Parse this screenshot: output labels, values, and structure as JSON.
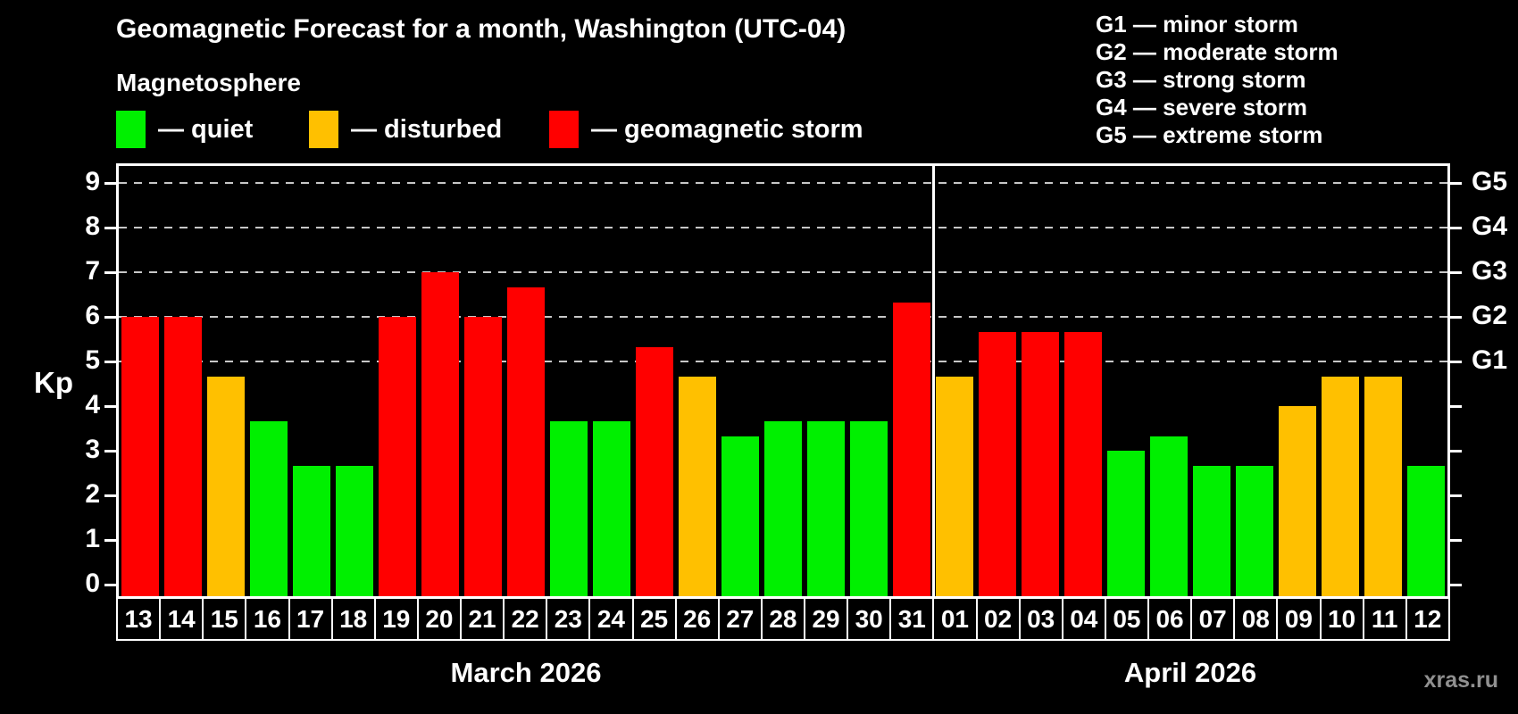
{
  "title": "Geomagnetic Forecast for a month, Washington (UTC-04)",
  "legend": {
    "heading": "Magnetosphere",
    "items": [
      {
        "level": "quiet",
        "label": "— quiet"
      },
      {
        "level": "disturbed",
        "label": "— disturbed"
      },
      {
        "level": "storm",
        "label": "— geomagnetic storm"
      }
    ]
  },
  "storm_legend": [
    "G1 — minor storm",
    "G2 — moderate storm",
    "G3 — strong storm",
    "G4 — severe storm",
    "G5 — extreme storm"
  ],
  "colors": {
    "quiet": "#00f000",
    "disturbed": "#ffc000",
    "storm": "#ff0000",
    "grid": "#c7c7c7",
    "watermark": "#909090"
  },
  "watermark": "xras.ru",
  "chart_data": {
    "type": "bar",
    "ylabel": "Kp",
    "ylim": [
      0,
      9.4
    ],
    "grid": "dashed horizontal lines at Kp 5..9 only",
    "legend_position": "top",
    "yticks": [
      0,
      1,
      2,
      3,
      4,
      5,
      6,
      7,
      8,
      9
    ],
    "gridlines": [
      5,
      6,
      7,
      8,
      9
    ],
    "right_axis": [
      {
        "kp": 5,
        "label": "G1"
      },
      {
        "kp": 6,
        "label": "G2"
      },
      {
        "kp": 7,
        "label": "G3"
      },
      {
        "kp": 8,
        "label": "G4"
      },
      {
        "kp": 9,
        "label": "G5"
      }
    ],
    "months": [
      {
        "label": "March 2026",
        "days": 19
      },
      {
        "label": "April 2026",
        "days": 12
      }
    ],
    "bars": [
      {
        "day": "13",
        "kp": 6.0,
        "level": "storm"
      },
      {
        "day": "14",
        "kp": 6.0,
        "level": "storm"
      },
      {
        "day": "15",
        "kp": 4.67,
        "level": "disturbed"
      },
      {
        "day": "16",
        "kp": 3.67,
        "level": "quiet"
      },
      {
        "day": "17",
        "kp": 2.67,
        "level": "quiet"
      },
      {
        "day": "18",
        "kp": 2.67,
        "level": "quiet"
      },
      {
        "day": "19",
        "kp": 6.0,
        "level": "storm"
      },
      {
        "day": "20",
        "kp": 7.0,
        "level": "storm"
      },
      {
        "day": "21",
        "kp": 6.0,
        "level": "storm"
      },
      {
        "day": "22",
        "kp": 6.67,
        "level": "storm"
      },
      {
        "day": "23",
        "kp": 3.67,
        "level": "quiet"
      },
      {
        "day": "24",
        "kp": 3.67,
        "level": "quiet"
      },
      {
        "day": "25",
        "kp": 5.33,
        "level": "storm"
      },
      {
        "day": "26",
        "kp": 4.67,
        "level": "disturbed"
      },
      {
        "day": "27",
        "kp": 3.33,
        "level": "quiet"
      },
      {
        "day": "28",
        "kp": 3.67,
        "level": "quiet"
      },
      {
        "day": "29",
        "kp": 3.67,
        "level": "quiet"
      },
      {
        "day": "30",
        "kp": 3.67,
        "level": "quiet"
      },
      {
        "day": "31",
        "kp": 6.33,
        "level": "storm"
      },
      {
        "day": "01",
        "kp": 4.67,
        "level": "disturbed"
      },
      {
        "day": "02",
        "kp": 5.67,
        "level": "storm"
      },
      {
        "day": "03",
        "kp": 5.67,
        "level": "storm"
      },
      {
        "day": "04",
        "kp": 5.67,
        "level": "storm"
      },
      {
        "day": "05",
        "kp": 3.0,
        "level": "quiet"
      },
      {
        "day": "06",
        "kp": 3.33,
        "level": "quiet"
      },
      {
        "day": "07",
        "kp": 2.67,
        "level": "quiet"
      },
      {
        "day": "08",
        "kp": 2.67,
        "level": "quiet"
      },
      {
        "day": "09",
        "kp": 4.0,
        "level": "disturbed"
      },
      {
        "day": "10",
        "kp": 4.67,
        "level": "disturbed"
      },
      {
        "day": "11",
        "kp": 4.67,
        "level": "disturbed"
      },
      {
        "day": "12",
        "kp": 2.67,
        "level": "quiet"
      }
    ]
  }
}
